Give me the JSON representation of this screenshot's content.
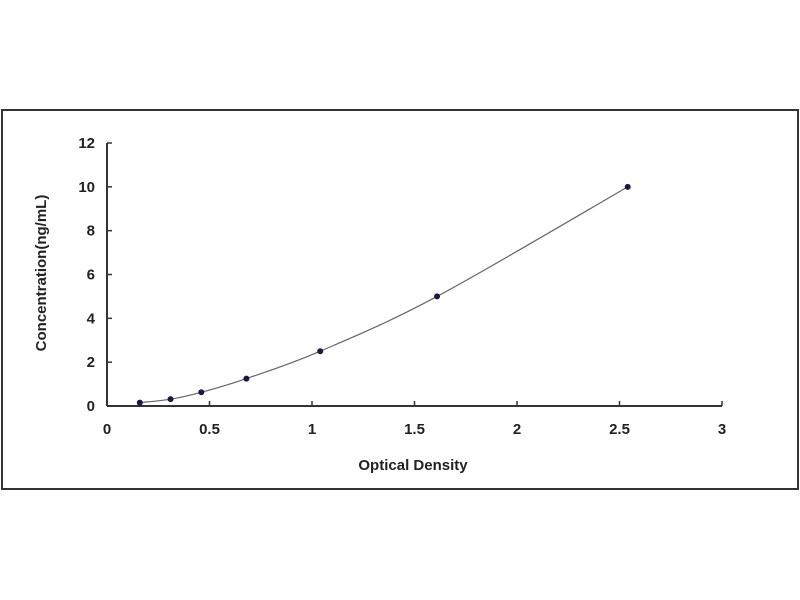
{
  "chart_data": {
    "type": "scatter",
    "title": "",
    "xlabel": "Optical Density",
    "ylabel": "Concentration(ng/mL)",
    "xlim": [
      0,
      3
    ],
    "ylim": [
      0,
      12
    ],
    "xticks": [
      "0",
      "0.5",
      "1",
      "1.5",
      "2",
      "2.5",
      "3"
    ],
    "yticks": [
      "0",
      "2",
      "4",
      "6",
      "8",
      "10",
      "12"
    ],
    "grid": false,
    "legend": "none",
    "trendline": "smooth curve",
    "series": [
      {
        "x": [
          0.16,
          0.31,
          0.46,
          0.68,
          1.04,
          1.61,
          2.54
        ],
        "y": [
          0.156,
          0.312,
          0.625,
          1.25,
          2.5,
          5,
          10
        ],
        "color": "#1a1a40"
      }
    ]
  }
}
